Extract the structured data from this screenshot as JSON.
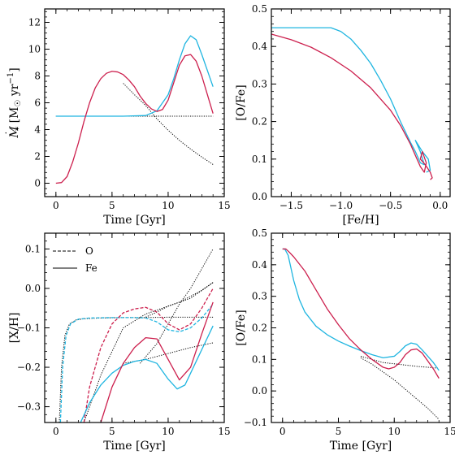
{
  "colors": {
    "red": "#cc1f4d",
    "cyan": "#1fb5e0",
    "black": "#000000"
  },
  "chart_data": [
    {
      "type": "line",
      "panel": "top-left",
      "xlabel": "Time [Gyr]",
      "ylabel_parts": {
        "main": "M",
        "sub": "*",
        "bracket_open": " [M",
        "sun": "☉",
        "unit_tail": " yr",
        "exp": "−1",
        "bracket_close": "]"
      },
      "xlim": [
        -1,
        15
      ],
      "ylim": [
        -1,
        13
      ],
      "xticks": [
        0,
        5,
        10,
        15
      ],
      "yticks": [
        0,
        2,
        4,
        6,
        8,
        10,
        12
      ],
      "xtick_labels": [
        "0",
        "5",
        "10",
        "15"
      ],
      "ytick_labels": [
        "0",
        "2",
        "4",
        "6",
        "8",
        "10",
        "12"
      ],
      "series": [
        {
          "color": "black",
          "dash": "dotted",
          "x": [
            0,
            2,
            4,
            5,
            6,
            7,
            8,
            9,
            10,
            11,
            12,
            13,
            14
          ],
          "y": [
            5,
            5,
            5,
            5,
            5,
            5,
            5,
            5,
            5,
            5,
            5,
            5,
            5
          ]
        },
        {
          "color": "black",
          "dash": "dotted",
          "x": [
            6,
            7,
            8,
            9,
            10,
            11,
            12,
            13,
            14
          ],
          "y": [
            7.45,
            6.6,
            5.8,
            4.8,
            3.95,
            3.2,
            2.55,
            1.95,
            1.4
          ]
        },
        {
          "color": "cyan",
          "dash": "solid",
          "x": [
            0,
            2,
            4,
            6,
            8,
            9,
            10,
            10.5,
            11,
            11.5,
            12,
            12.5,
            13,
            13.5,
            14
          ],
          "y": [
            5,
            5,
            5,
            5,
            5.05,
            5.4,
            6.6,
            7.8,
            9.2,
            10.4,
            11.0,
            10.7,
            9.6,
            8.4,
            7.2
          ]
        },
        {
          "color": "red",
          "dash": "solid",
          "x": [
            0,
            0.5,
            1,
            1.5,
            2,
            2.5,
            3,
            3.5,
            4,
            4.5,
            5,
            5.5,
            6,
            6.5,
            7,
            7.5,
            8,
            8.5,
            9,
            9.5,
            10,
            10.5,
            11,
            11.5,
            12,
            12.5,
            13,
            13.5,
            14
          ],
          "y": [
            0,
            0.05,
            0.5,
            1.6,
            3.0,
            4.6,
            6.0,
            7.1,
            7.8,
            8.2,
            8.35,
            8.3,
            8.1,
            7.7,
            7.2,
            6.5,
            5.95,
            5.55,
            5.35,
            5.5,
            6.2,
            7.5,
            8.8,
            9.5,
            9.6,
            9.1,
            8.0,
            6.6,
            5.2
          ]
        }
      ]
    },
    {
      "type": "line",
      "panel": "top-right",
      "xlabel": "[Fe/H]",
      "ylabel": "[O/Fe]",
      "xlim": [
        -1.7,
        0.1
      ],
      "ylim": [
        0.0,
        0.5
      ],
      "xticks": [
        -1.5,
        -1.0,
        -0.5,
        0.0
      ],
      "yticks": [
        0.0,
        0.1,
        0.2,
        0.3,
        0.4,
        0.5
      ],
      "xtick_labels": [
        "−1.5",
        "−1.0",
        "−0.5",
        "0.0"
      ],
      "ytick_labels": [
        "0.0",
        "0.1",
        "0.2",
        "0.3",
        "0.4",
        "0.5"
      ],
      "series": [
        {
          "color": "cyan",
          "dash": "solid",
          "x": [
            -1.7,
            -1.5,
            -1.3,
            -1.1,
            -1.0,
            -0.9,
            -0.8,
            -0.7,
            -0.6,
            -0.5,
            -0.4,
            -0.3,
            -0.25,
            -0.2,
            -0.16,
            -0.2,
            -0.25,
            -0.18,
            -0.12,
            -0.1,
            -0.14
          ],
          "y": [
            0.45,
            0.45,
            0.45,
            0.45,
            0.44,
            0.42,
            0.39,
            0.355,
            0.31,
            0.26,
            0.2,
            0.145,
            0.12,
            0.09,
            0.085,
            0.12,
            0.15,
            0.12,
            0.1,
            0.07,
            0.065
          ]
        },
        {
          "color": "red",
          "dash": "solid",
          "x": [
            -1.7,
            -1.5,
            -1.3,
            -1.1,
            -0.9,
            -0.7,
            -0.5,
            -0.4,
            -0.3,
            -0.25,
            -0.2,
            -0.16,
            -0.14,
            -0.18,
            -0.2,
            -0.15,
            -0.1,
            -0.08,
            -0.1
          ],
          "y": [
            0.433,
            0.418,
            0.398,
            0.37,
            0.335,
            0.29,
            0.23,
            0.19,
            0.14,
            0.11,
            0.08,
            0.065,
            0.09,
            0.12,
            0.1,
            0.085,
            0.065,
            0.05,
            0.045
          ]
        }
      ]
    },
    {
      "type": "line",
      "panel": "bottom-left",
      "xlabel": "Time [Gyr]",
      "ylabel": "[X/H]",
      "xlim": [
        -1,
        15
      ],
      "ylim": [
        -0.34,
        0.14
      ],
      "xticks": [
        0,
        5,
        10,
        15
      ],
      "yticks": [
        -0.3,
        -0.2,
        -0.1,
        0.0,
        0.1
      ],
      "xtick_labels": [
        "0",
        "5",
        "10",
        "15"
      ],
      "ytick_labels": [
        "−0.3",
        "−0.2",
        "−0.1",
        "0.0",
        "0.1"
      ],
      "legend": {
        "placement": "top-left",
        "entries": [
          {
            "label": "O",
            "dash": "dashed"
          },
          {
            "label": "Fe",
            "dash": "solid"
          }
        ]
      },
      "series": [
        {
          "color": "black",
          "dash": "dotted",
          "x": [
            0.3,
            0.5,
            0.8,
            1.2,
            1.8,
            2.5,
            4,
            6,
            8,
            10,
            12,
            14
          ],
          "y": [
            -0.34,
            -0.2,
            -0.12,
            -0.09,
            -0.08,
            -0.077,
            -0.075,
            -0.074,
            -0.074,
            -0.073,
            -0.073,
            -0.073
          ]
        },
        {
          "color": "black",
          "dash": "dotted",
          "x": [
            8,
            9,
            10,
            11,
            12,
            13,
            14
          ],
          "y": [
            -0.073,
            -0.06,
            -0.045,
            -0.035,
            -0.02,
            -0.005,
            0.015
          ]
        },
        {
          "color": "black",
          "dash": "dotted",
          "x": [
            2.5,
            4,
            6,
            8,
            10,
            12,
            14
          ],
          "y": [
            -0.34,
            -0.22,
            -0.1,
            -0.065,
            -0.045,
            -0.025,
            0.015
          ]
        },
        {
          "color": "black",
          "dash": "dotted",
          "x": [
            7.5,
            9,
            10,
            11,
            12,
            13,
            14
          ],
          "y": [
            -0.19,
            -0.14,
            -0.09,
            -0.04,
            0.0,
            0.05,
            0.1
          ]
        },
        {
          "color": "black",
          "dash": "dotted",
          "x": [
            6,
            8,
            10,
            12,
            14
          ],
          "y": [
            -0.19,
            -0.18,
            -0.165,
            -0.15,
            -0.138
          ]
        },
        {
          "color": "cyan",
          "dash": "dashed",
          "x": [
            0.4,
            0.6,
            0.9,
            1.3,
            2,
            3,
            5,
            7,
            8,
            9,
            10,
            11,
            12,
            13,
            14
          ],
          "y": [
            -0.34,
            -0.2,
            -0.12,
            -0.09,
            -0.078,
            -0.075,
            -0.074,
            -0.074,
            -0.075,
            -0.085,
            -0.105,
            -0.11,
            -0.1,
            -0.075,
            -0.04
          ]
        },
        {
          "color": "red",
          "dash": "dashed",
          "x": [
            2.5,
            3,
            4,
            5,
            6,
            7,
            8,
            9,
            10,
            11,
            12,
            13,
            14
          ],
          "y": [
            -0.34,
            -0.25,
            -0.15,
            -0.09,
            -0.062,
            -0.052,
            -0.048,
            -0.06,
            -0.09,
            -0.105,
            -0.09,
            -0.05,
            0.0
          ]
        },
        {
          "color": "cyan",
          "dash": "solid",
          "x": [
            2.2,
            3,
            4,
            5,
            6,
            7,
            8,
            9,
            10,
            10.8,
            11.5,
            12,
            13,
            14
          ],
          "y": [
            -0.34,
            -0.29,
            -0.245,
            -0.215,
            -0.195,
            -0.185,
            -0.18,
            -0.19,
            -0.23,
            -0.255,
            -0.245,
            -0.215,
            -0.155,
            -0.095
          ]
        },
        {
          "color": "red",
          "dash": "solid",
          "x": [
            4,
            5,
            6,
            7,
            8,
            9,
            10,
            11,
            12,
            13,
            14
          ],
          "y": [
            -0.34,
            -0.25,
            -0.19,
            -0.15,
            -0.125,
            -0.128,
            -0.18,
            -0.232,
            -0.2,
            -0.115,
            -0.035
          ]
        }
      ]
    },
    {
      "type": "line",
      "panel": "bottom-right",
      "xlabel": "Time [Gyr]",
      "ylabel": "[O/Fe]",
      "xlim": [
        -1,
        15
      ],
      "ylim": [
        -0.1,
        0.5
      ],
      "xticks": [
        0,
        5,
        10,
        15
      ],
      "yticks": [
        -0.1,
        0.0,
        0.1,
        0.2,
        0.3,
        0.4,
        0.5
      ],
      "xtick_labels": [
        "0",
        "5",
        "10",
        "15"
      ],
      "ytick_labels": [
        "−0.1",
        "0.0",
        "0.1",
        "0.2",
        "0.3",
        "0.4",
        "0.5"
      ],
      "series": [
        {
          "color": "black",
          "dash": "dotted",
          "x": [
            7,
            8,
            9,
            10,
            11,
            12,
            13,
            14
          ],
          "y": [
            0.11,
            0.1,
            0.09,
            0.086,
            0.082,
            0.078,
            0.075,
            0.072
          ]
        },
        {
          "color": "black",
          "dash": "dotted",
          "x": [
            7,
            8,
            9,
            10,
            11,
            12,
            13,
            14
          ],
          "y": [
            0.105,
            0.085,
            0.06,
            0.035,
            0.005,
            -0.025,
            -0.055,
            -0.09
          ]
        },
        {
          "color": "cyan",
          "dash": "solid",
          "x": [
            0,
            0.2,
            0.5,
            1,
            1.5,
            2,
            3,
            4,
            5,
            6,
            7,
            8,
            9,
            10,
            10.5,
            11,
            11.5,
            12,
            12.5,
            13,
            13.5,
            14
          ],
          "y": [
            0.45,
            0.45,
            0.43,
            0.35,
            0.29,
            0.25,
            0.205,
            0.178,
            0.158,
            0.142,
            0.128,
            0.115,
            0.105,
            0.11,
            0.125,
            0.143,
            0.152,
            0.148,
            0.13,
            0.11,
            0.09,
            0.065
          ]
        },
        {
          "color": "red",
          "dash": "solid",
          "x": [
            0,
            0.3,
            0.6,
            1,
            2,
            3,
            4,
            5,
            6,
            7,
            8,
            9,
            9.5,
            10,
            10.5,
            11,
            11.5,
            12,
            12.5,
            13,
            13.5,
            14
          ],
          "y": [
            0.45,
            0.45,
            0.44,
            0.425,
            0.38,
            0.32,
            0.26,
            0.21,
            0.165,
            0.13,
            0.1,
            0.075,
            0.07,
            0.075,
            0.09,
            0.115,
            0.13,
            0.133,
            0.12,
            0.095,
            0.07,
            0.04
          ]
        }
      ]
    }
  ]
}
